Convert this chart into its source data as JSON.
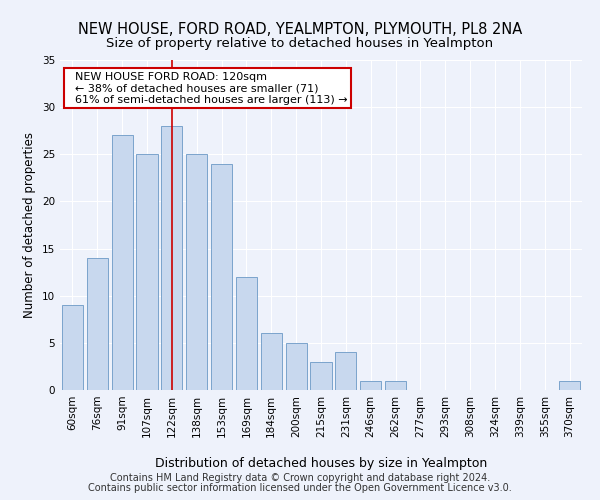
{
  "title": "NEW HOUSE, FORD ROAD, YEALMPTON, PLYMOUTH, PL8 2NA",
  "subtitle": "Size of property relative to detached houses in Yealmpton",
  "xlabel": "Distribution of detached houses by size in Yealmpton",
  "ylabel": "Number of detached properties",
  "bar_color": "#c8d8ee",
  "bar_edge_color": "#7ba3cc",
  "categories": [
    "60sqm",
    "76sqm",
    "91sqm",
    "107sqm",
    "122sqm",
    "138sqm",
    "153sqm",
    "169sqm",
    "184sqm",
    "200sqm",
    "215sqm",
    "231sqm",
    "246sqm",
    "262sqm",
    "277sqm",
    "293sqm",
    "308sqm",
    "324sqm",
    "339sqm",
    "355sqm",
    "370sqm"
  ],
  "values": [
    9,
    14,
    27,
    25,
    28,
    25,
    24,
    12,
    6,
    5,
    3,
    4,
    1,
    1,
    0,
    0,
    0,
    0,
    0,
    0,
    1
  ],
  "ylim": [
    0,
    35
  ],
  "yticks": [
    0,
    5,
    10,
    15,
    20,
    25,
    30,
    35
  ],
  "annotation_text": "  NEW HOUSE FORD ROAD: 120sqm\n  ← 38% of detached houses are smaller (71)\n  61% of semi-detached houses are larger (113) →",
  "footer_line1": "Contains HM Land Registry data © Crown copyright and database right 2024.",
  "footer_line2": "Contains public sector information licensed under the Open Government Licence v3.0.",
  "background_color": "#eef2fb",
  "plot_bg_color": "#eef2fb",
  "grid_color": "#ffffff",
  "annotation_box_color": "#ffffff",
  "annotation_box_edge": "#cc0000",
  "red_line_color": "#cc0000",
  "title_fontsize": 10.5,
  "subtitle_fontsize": 9.5,
  "ylabel_fontsize": 8.5,
  "xlabel_fontsize": 9,
  "tick_fontsize": 7.5,
  "annotation_fontsize": 8,
  "footer_fontsize": 7
}
